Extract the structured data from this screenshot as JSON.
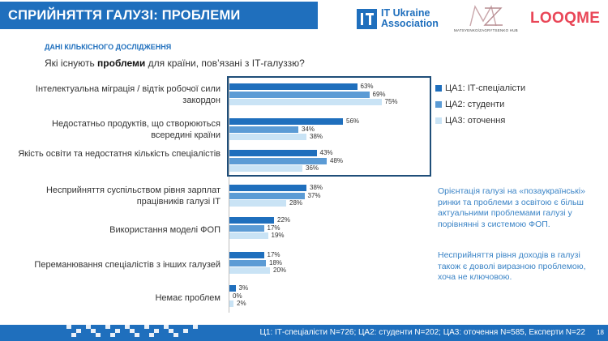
{
  "header": {
    "title": "СПРИЙНЯТТЯ ГАЛУЗІ: ПРОБЛЕМИ",
    "logo_itua_line1": "IT Ukraine",
    "logo_itua_line2": "Association",
    "logo_mz_subtitle": "MATSYENKO/ZAGRYTSENKO HUB",
    "logo_looqme": "LOOQME"
  },
  "subtitle": "ДАНІ КІЛЬКІСНОГО ДОСЛІДЖЕННЯ",
  "question": {
    "before": "Які існують ",
    "bold": "проблеми",
    "after": " для країни, пов’язані з ІТ-галуззю?"
  },
  "legend": [
    {
      "label": "ЦА1: ІТ-спеціалісти",
      "color": "#1f6fbd"
    },
    {
      "label": "ЦА2: студенти",
      "color": "#5b9bd5"
    },
    {
      "label": "ЦА3: оточення",
      "color": "#c9e3f5"
    }
  ],
  "chart_data": {
    "type": "bar",
    "orientation": "horizontal",
    "categories": [
      "Інтелектуальна міграція / відтік робочої сили закордон",
      "Недостатньо продуктів, що створюються всередині країни",
      "Якість освіти та недостатня кількість спеціалістів",
      "Несприйняття суспільством рівня зарплат працівників галузі ІТ",
      "Використання моделі ФОП",
      "Переманювання спеціалістів з інших галузей",
      "Немає проблем"
    ],
    "series": [
      {
        "name": "ЦА1: ІТ-спеціалісти",
        "values": [
          63,
          56,
          43,
          38,
          22,
          17,
          3
        ]
      },
      {
        "name": "ЦА2: студенти",
        "values": [
          69,
          34,
          48,
          37,
          17,
          18,
          0
        ]
      },
      {
        "name": "ЦА3: оточення",
        "values": [
          75,
          38,
          36,
          28,
          19,
          20,
          2
        ]
      }
    ],
    "value_suffix": "%",
    "highlighted_categories": [
      0,
      1,
      2
    ],
    "legend_position": "right"
  },
  "side_notes": [
    "Орієнтація галузі на «позаукраїнські» ринки та проблеми з освітою є більш актуальними проблемами галузі у порівнянні з системою ФОП.",
    "Несприйняття рівня доходів в галузі також є доволі виразною проблемою, хоча не ключовою."
  ],
  "footer": {
    "text": "Ц1: ІТ-спеціалісти N=726; ЦА2: студенти N=202; ЦА3: оточення N=585, Експерти N=22",
    "page": "18"
  }
}
